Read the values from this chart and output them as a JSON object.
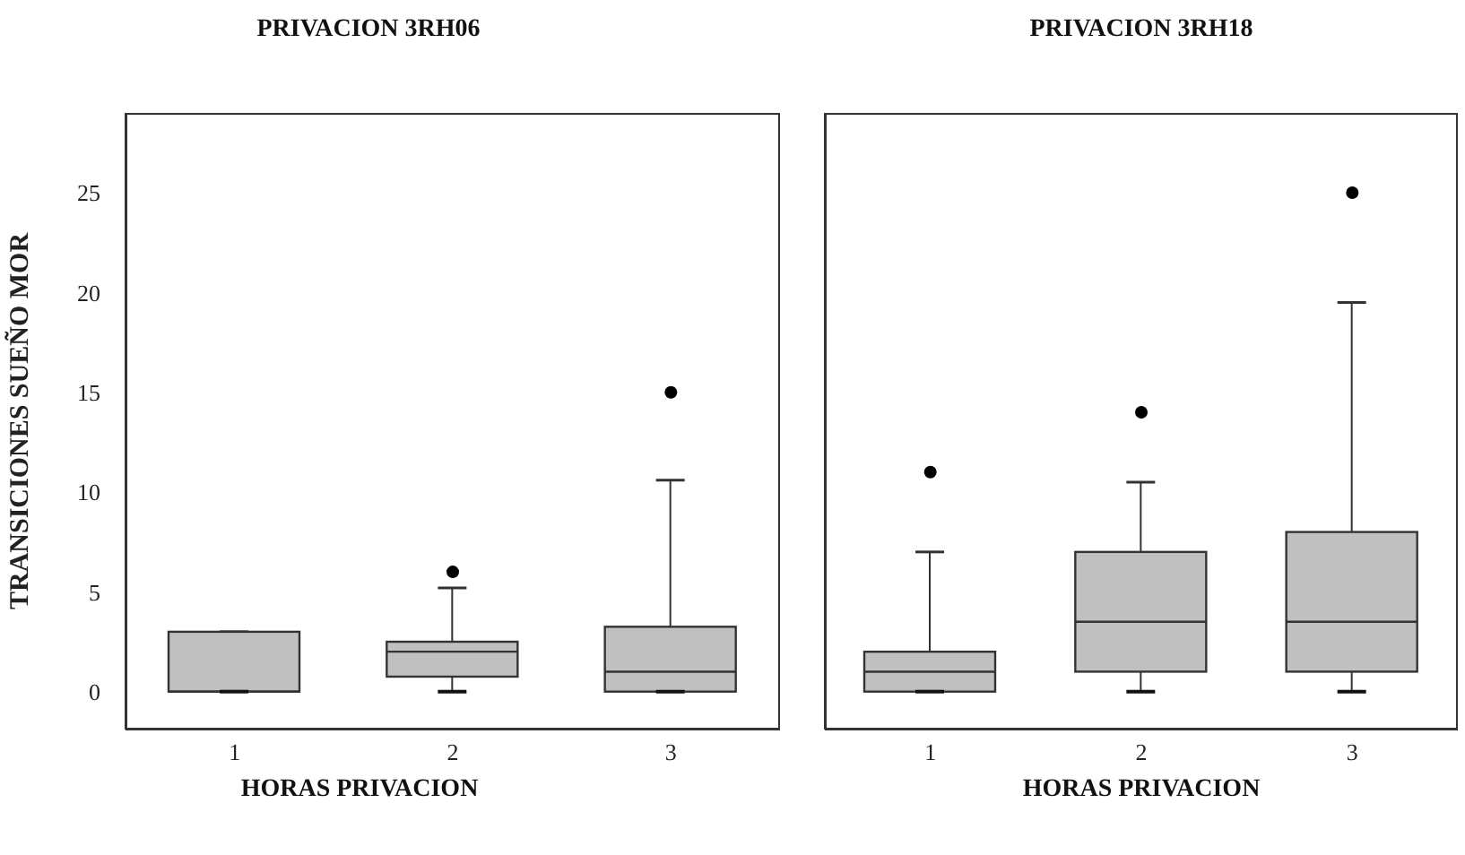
{
  "chart_data": [
    {
      "type": "box",
      "title": "PRIVACION 3RH06",
      "xlabel": "HORAS PRIVACION",
      "ylabel": "TRANSICIONES SUEÑO MOR",
      "categories": [
        "1",
        "2",
        "3"
      ],
      "color": "#c0c0c0",
      "boxes": [
        {
          "low": 0,
          "q1": 0,
          "median": 0,
          "q3": 3,
          "high": 3
        },
        {
          "low": 0,
          "q1": 0.75,
          "median": 2,
          "q3": 2.5,
          "high": 5.2,
          "outliers": [
            6
          ]
        },
        {
          "low": 0,
          "q1": 0,
          "median": 1,
          "q3": 3.25,
          "high": 10.6,
          "outliers": [
            15
          ]
        }
      ],
      "ylim": [
        -1.9,
        29
      ],
      "yticks": [
        0,
        5,
        10,
        15,
        20,
        25
      ],
      "grid": false
    },
    {
      "type": "box",
      "title": "PRIVACION 3RH18",
      "xlabel": "HORAS PRIVACION",
      "categories": [
        "1",
        "2",
        "3"
      ],
      "color": "#c0c0c0",
      "boxes": [
        {
          "low": 0,
          "q1": 0,
          "median": 1,
          "q3": 2,
          "high": 7,
          "outliers": [
            11
          ]
        },
        {
          "low": 0,
          "q1": 1,
          "median": 3.5,
          "q3": 7,
          "high": 10.5,
          "outliers": [
            14
          ]
        },
        {
          "low": 0,
          "q1": 1,
          "median": 3.5,
          "q3": 8,
          "high": 19.5,
          "outliers": [
            25
          ]
        }
      ],
      "ylim": [
        -1.9,
        29
      ],
      "yticks": [
        0,
        5,
        10,
        15,
        20,
        25
      ],
      "grid": false,
      "tick_labels": "x"
    }
  ]
}
